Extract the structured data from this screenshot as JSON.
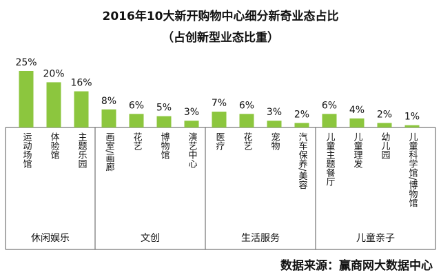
{
  "chart_data": {
    "type": "bar",
    "title": "2016年10大新开购物中心细分新奇业态占比",
    "subtitle": "（占创新型业态比重）",
    "source": "数据来源：赢商网大数据中心",
    "color": "#8cc63e",
    "groups": [
      {
        "name": "休闲娱乐",
        "categories": [
          "运动场馆",
          "体验馆",
          "主题乐园"
        ],
        "values": [
          25,
          20,
          16
        ],
        "value_labels": [
          "25%",
          "20%",
          "16%"
        ]
      },
      {
        "name": "文创",
        "categories": [
          "画室/画廊",
          "花艺",
          "博物馆",
          "演艺中心"
        ],
        "values": [
          8,
          6,
          5,
          3
        ],
        "value_labels": [
          "8%",
          "6%",
          "5%",
          "3%"
        ]
      },
      {
        "name": "生活服务",
        "categories": [
          "医疗",
          "花艺",
          "宠物",
          "汽车保养/美容"
        ],
        "values": [
          7,
          6,
          3,
          2
        ],
        "value_labels": [
          "7%",
          "6%",
          "3%",
          "2%"
        ]
      },
      {
        "name": "儿童亲子",
        "categories": [
          "儿童主题餐厅",
          "儿童理发",
          "幼儿园",
          "儿童科学馆/博物馆"
        ],
        "values": [
          6,
          4,
          2,
          1
        ],
        "value_labels": [
          "6%",
          "4%",
          "2%",
          "1%"
        ]
      }
    ]
  }
}
